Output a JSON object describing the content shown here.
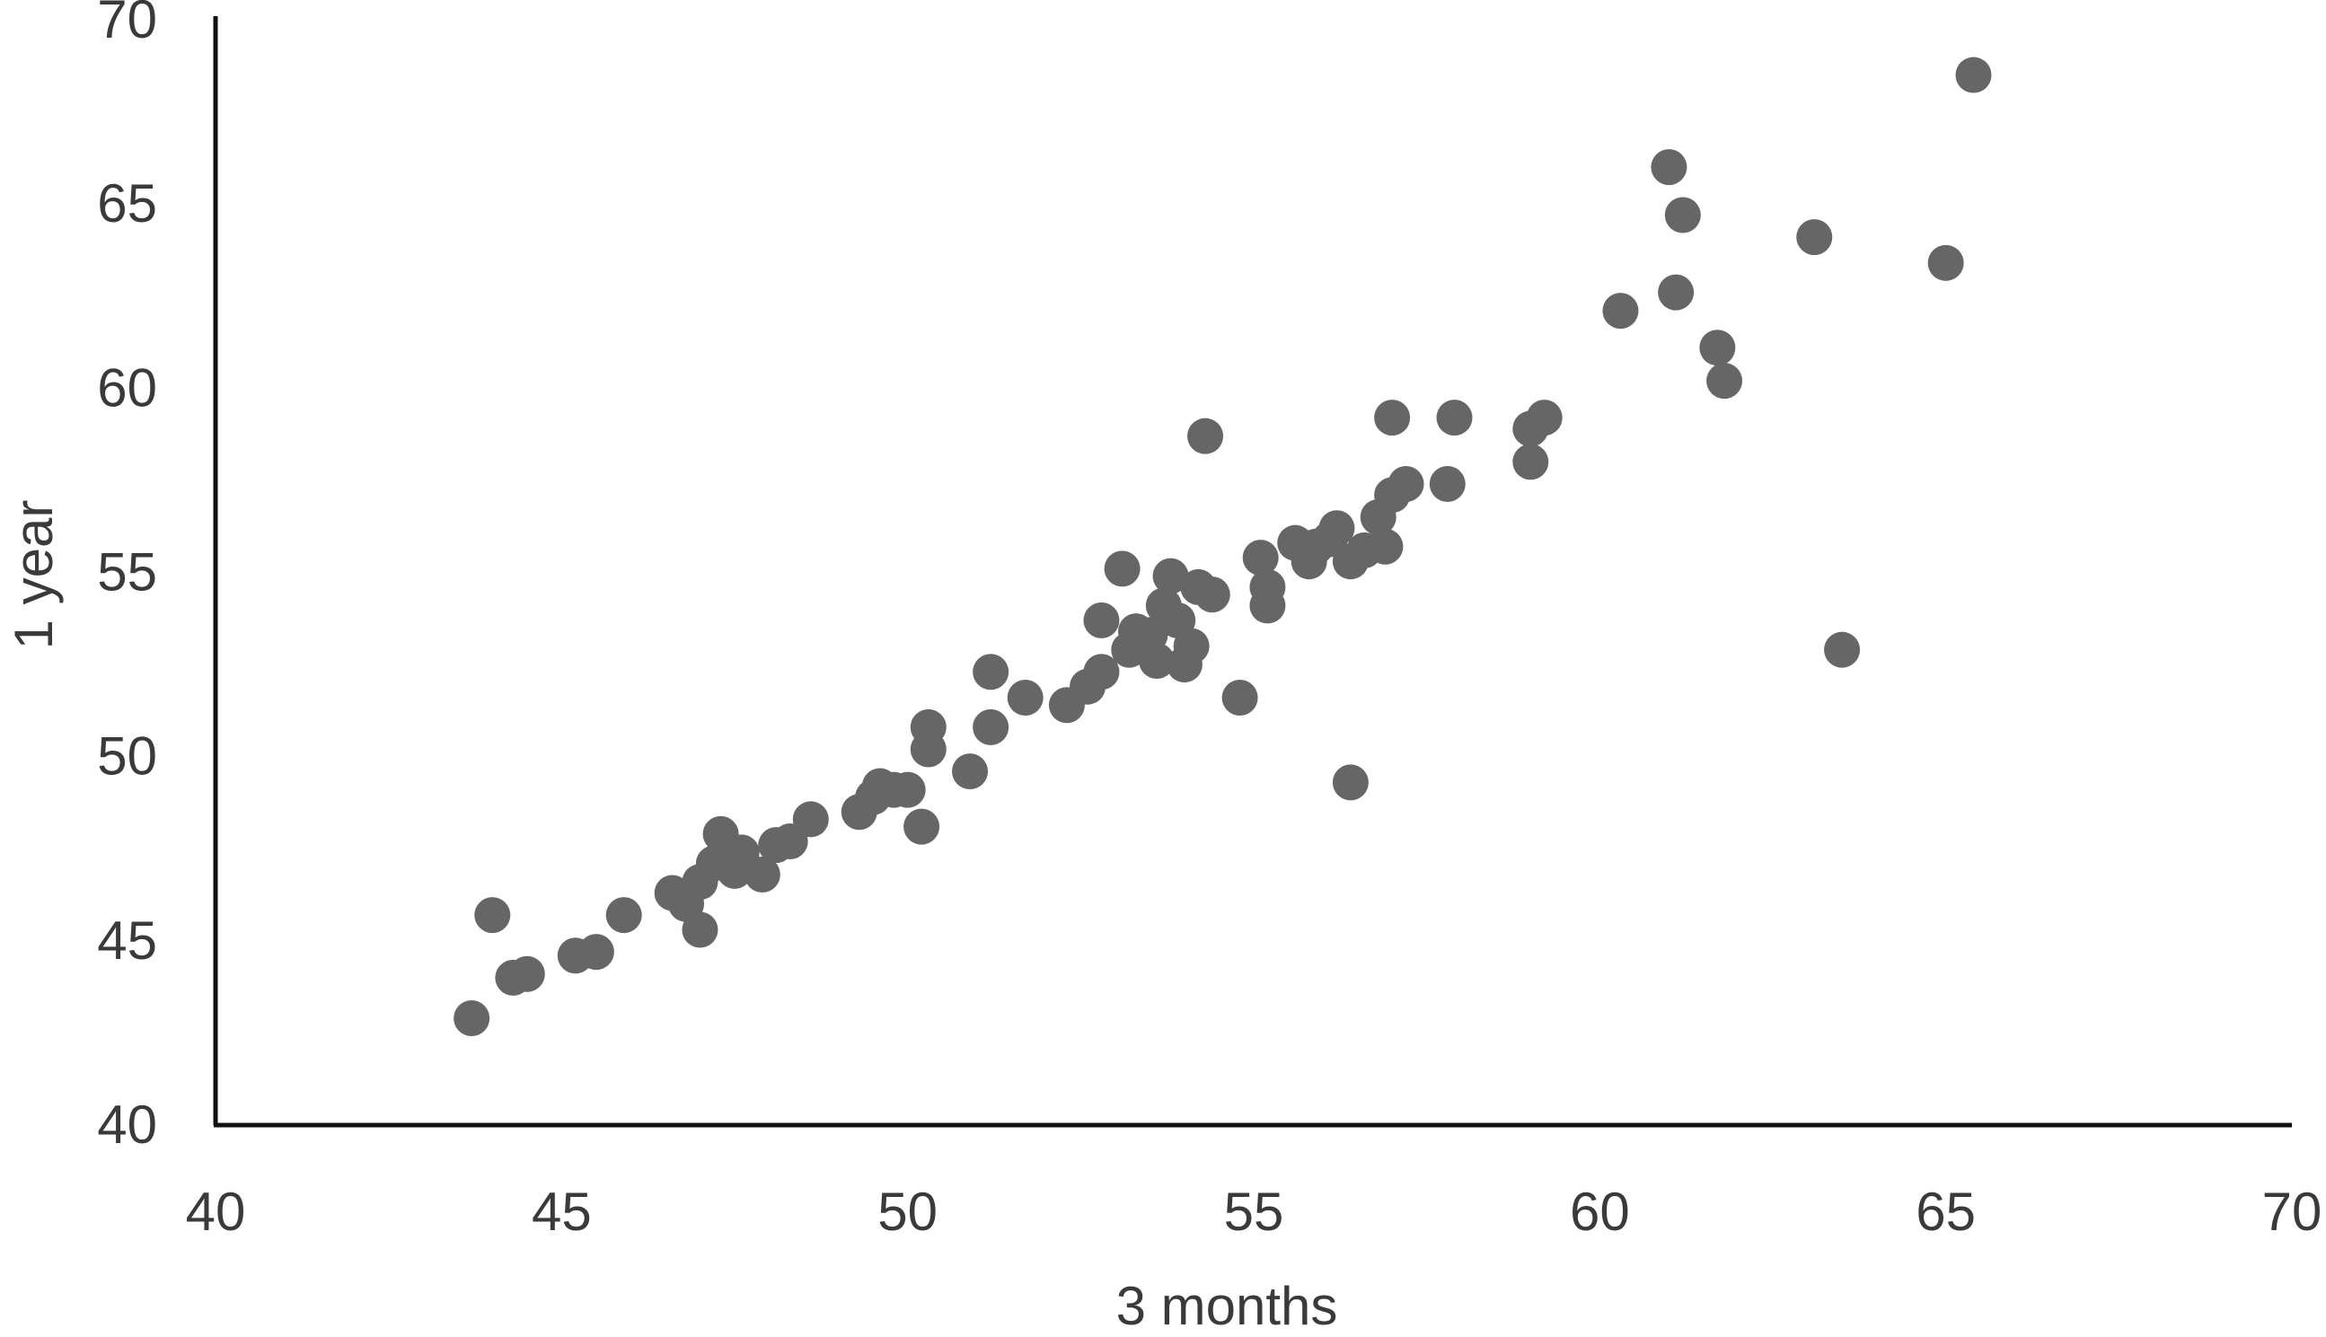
{
  "chart_data": {
    "type": "scatter",
    "xlabel": "3 months",
    "ylabel": "1 year",
    "xlim": [
      40,
      70
    ],
    "ylim": [
      40,
      70
    ],
    "xticks": [
      40,
      45,
      50,
      55,
      60,
      65,
      70
    ],
    "yticks": [
      40,
      45,
      50,
      55,
      60,
      65,
      70
    ],
    "grid": false,
    "marker_color": "#666666",
    "series": [
      {
        "points": [
          [
            43.7,
            42.9
          ],
          [
            44.0,
            45.7
          ],
          [
            44.3,
            44.0
          ],
          [
            44.5,
            44.1
          ],
          [
            45.2,
            44.6
          ],
          [
            45.5,
            44.7
          ],
          [
            45.9,
            45.7
          ],
          [
            46.6,
            46.3
          ],
          [
            46.8,
            46.0
          ],
          [
            47.0,
            45.3
          ],
          [
            47.0,
            46.6
          ],
          [
            47.2,
            47.1
          ],
          [
            47.3,
            47.9
          ],
          [
            47.5,
            46.9
          ],
          [
            47.6,
            47.4
          ],
          [
            47.9,
            46.8
          ],
          [
            48.1,
            47.6
          ],
          [
            48.3,
            47.7
          ],
          [
            48.6,
            48.3
          ],
          [
            49.3,
            48.5
          ],
          [
            49.5,
            48.9
          ],
          [
            49.6,
            49.2
          ],
          [
            49.8,
            49.1
          ],
          [
            50.0,
            49.1
          ],
          [
            50.2,
            48.1
          ],
          [
            50.3,
            50.2
          ],
          [
            50.3,
            50.8
          ],
          [
            50.9,
            49.6
          ],
          [
            51.2,
            50.8
          ],
          [
            51.2,
            52.3
          ],
          [
            51.7,
            51.6
          ],
          [
            52.3,
            51.4
          ],
          [
            52.6,
            51.9
          ],
          [
            52.8,
            52.3
          ],
          [
            52.8,
            53.7
          ],
          [
            53.1,
            55.1
          ],
          [
            53.2,
            52.9
          ],
          [
            53.3,
            53.4
          ],
          [
            53.5,
            53.3
          ],
          [
            53.6,
            52.6
          ],
          [
            53.7,
            54.1
          ],
          [
            53.8,
            54.9
          ],
          [
            53.9,
            53.7
          ],
          [
            54.0,
            52.5
          ],
          [
            54.1,
            53.0
          ],
          [
            54.2,
            54.6
          ],
          [
            54.3,
            58.7
          ],
          [
            54.4,
            54.4
          ],
          [
            54.8,
            51.6
          ],
          [
            55.1,
            55.4
          ],
          [
            55.2,
            54.6
          ],
          [
            55.2,
            54.1
          ],
          [
            55.6,
            55.8
          ],
          [
            55.8,
            55.3
          ],
          [
            55.9,
            55.7
          ],
          [
            56.1,
            55.9
          ],
          [
            56.2,
            56.2
          ],
          [
            56.4,
            49.3
          ],
          [
            56.4,
            55.3
          ],
          [
            56.6,
            55.6
          ],
          [
            56.8,
            56.5
          ],
          [
            56.9,
            55.7
          ],
          [
            57.0,
            57.1
          ],
          [
            57.0,
            59.2
          ],
          [
            57.2,
            57.4
          ],
          [
            57.8,
            57.4
          ],
          [
            57.9,
            59.2
          ],
          [
            59.0,
            58.0
          ],
          [
            59.0,
            58.9
          ],
          [
            59.2,
            59.2
          ],
          [
            60.3,
            62.1
          ],
          [
            61.0,
            66.0
          ],
          [
            61.1,
            62.6
          ],
          [
            61.2,
            64.7
          ],
          [
            61.7,
            61.1
          ],
          [
            61.8,
            60.2
          ],
          [
            63.1,
            64.1
          ],
          [
            63.5,
            52.9
          ],
          [
            65.0,
            63.4
          ],
          [
            65.4,
            68.5
          ]
        ]
      }
    ]
  }
}
